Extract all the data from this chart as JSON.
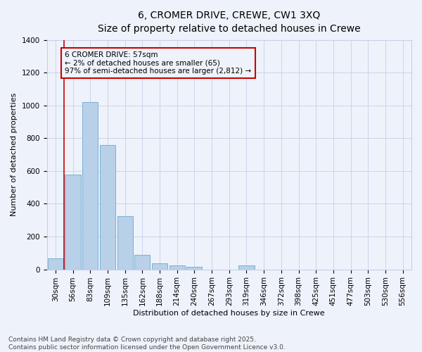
{
  "title_line1": "6, CROMER DRIVE, CREWE, CW1 3XQ",
  "title_line2": "Size of property relative to detached houses in Crewe",
  "xlabel": "Distribution of detached houses by size in Crewe",
  "ylabel": "Number of detached properties",
  "categories": [
    "30sqm",
    "56sqm",
    "83sqm",
    "109sqm",
    "135sqm",
    "162sqm",
    "188sqm",
    "214sqm",
    "240sqm",
    "267sqm",
    "293sqm",
    "319sqm",
    "346sqm",
    "372sqm",
    "398sqm",
    "425sqm",
    "451sqm",
    "477sqm",
    "503sqm",
    "530sqm",
    "556sqm"
  ],
  "values": [
    65,
    580,
    1020,
    760,
    325,
    90,
    38,
    25,
    15,
    0,
    0,
    25,
    0,
    0,
    0,
    0,
    0,
    0,
    0,
    0,
    0
  ],
  "bar_color": "#b8d0e8",
  "bar_edge_color": "#6aaad4",
  "annotation_text_line1": "6 CROMER DRIVE: 57sqm",
  "annotation_text_line2": "← 2% of detached houses are smaller (65)",
  "annotation_text_line3": "97% of semi-detached houses are larger (2,812) →",
  "annotation_box_color": "#cc0000",
  "vline_x": 0.5,
  "ylim_max": 1400,
  "yticks": [
    0,
    200,
    400,
    600,
    800,
    1000,
    1200,
    1400
  ],
  "background_color": "#eef2fa",
  "grid_color": "#c8cfe8",
  "footnote_line1": "Contains HM Land Registry data © Crown copyright and database right 2025.",
  "footnote_line2": "Contains public sector information licensed under the Open Government Licence v3.0.",
  "title_fontsize": 10,
  "subtitle_fontsize": 9,
  "axis_label_fontsize": 8,
  "tick_fontsize": 7.5,
  "annotation_fontsize": 7.5,
  "footnote_fontsize": 6.5
}
